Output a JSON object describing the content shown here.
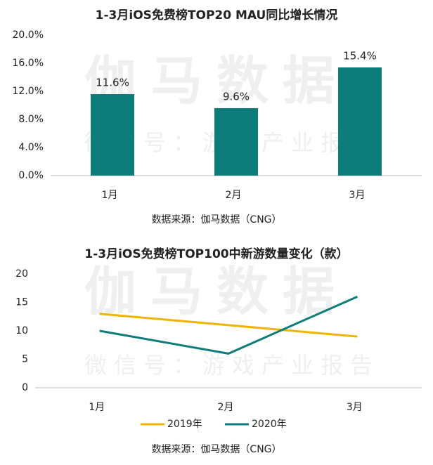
{
  "chart_data": [
    {
      "type": "bar",
      "title": "1-3月iOS免费榜TOP20 MAU同比增长情况",
      "categories": [
        "1月",
        "2月",
        "3月"
      ],
      "values": [
        11.6,
        9.6,
        15.4
      ],
      "value_labels": [
        "11.6%",
        "9.6%",
        "15.4%"
      ],
      "color": "#0e7c7b",
      "ylim": [
        0,
        20
      ],
      "yticks": [
        {
          "value": 0,
          "label": "0.0%"
        },
        {
          "value": 4,
          "label": "4.0%"
        },
        {
          "value": 8,
          "label": "8.0%"
        },
        {
          "value": 12,
          "label": "12.0%"
        },
        {
          "value": 16,
          "label": "16.0%"
        },
        {
          "value": 20,
          "label": "20.0%"
        }
      ],
      "grid": false,
      "source": "数据来源：伽马数据（CNG）",
      "watermark": "伽马数据",
      "watermark_sub": "微信号：游戏产业报告"
    },
    {
      "type": "line",
      "title": "1-3月iOS免费榜TOP100中新游数量变化（款）",
      "categories": [
        "1月",
        "2月",
        "3月"
      ],
      "series": [
        {
          "name": "2019年",
          "color": "#f0b400",
          "values": [
            13,
            11,
            9
          ]
        },
        {
          "name": "2020年",
          "color": "#0e7c7b",
          "values": [
            10,
            6,
            16
          ]
        }
      ],
      "ylim": [
        0,
        20
      ],
      "yticks": [
        0,
        5,
        10,
        15,
        20
      ],
      "grid": false,
      "legend": "bottom",
      "source": "数据来源：伽马数据（CNG）",
      "watermark": "伽马数据",
      "watermark_sub": "微信号：游戏产业报告"
    }
  ]
}
